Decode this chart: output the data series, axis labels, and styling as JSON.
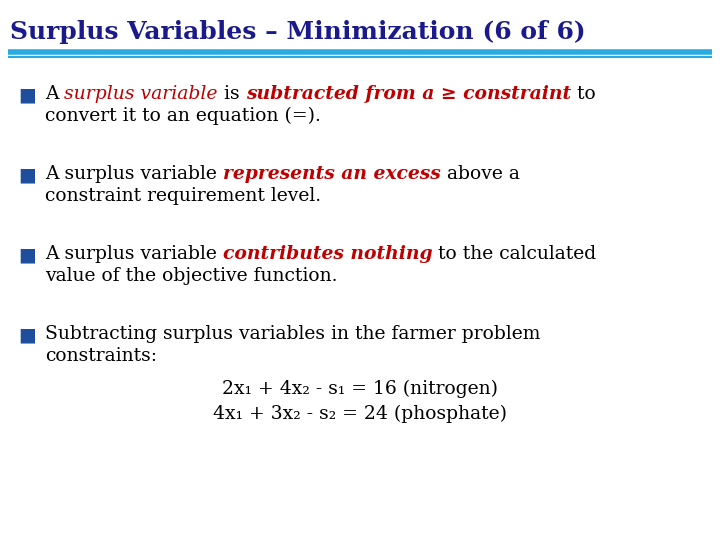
{
  "title": "Surplus Variables – Minimization (6 of 6)",
  "title_color": "#1a1a8c",
  "title_fontsize": 18,
  "line_color": "#29abe2",
  "bg_color": "#ffffff",
  "bullet_color": "#1f4e9c",
  "text_color": "#000000",
  "red_color": "#c00000",
  "body_fontsize": 13.5,
  "eq_fontsize": 13.5,
  "bullet1_line2": "convert it to an equation (=).",
  "bullet2_line2": "constraint requirement level.",
  "bullet3_line2": "value of the objective function.",
  "bullet4_line1": "Subtracting surplus variables in the farmer problem",
  "bullet4_line2": "constraints:",
  "eq1": "2x₁ + 4x₂ - s₁ = 16 (nitrogen)",
  "eq2": "4x₁ + 3x₂ - s₂ = 24 (phosphate)"
}
